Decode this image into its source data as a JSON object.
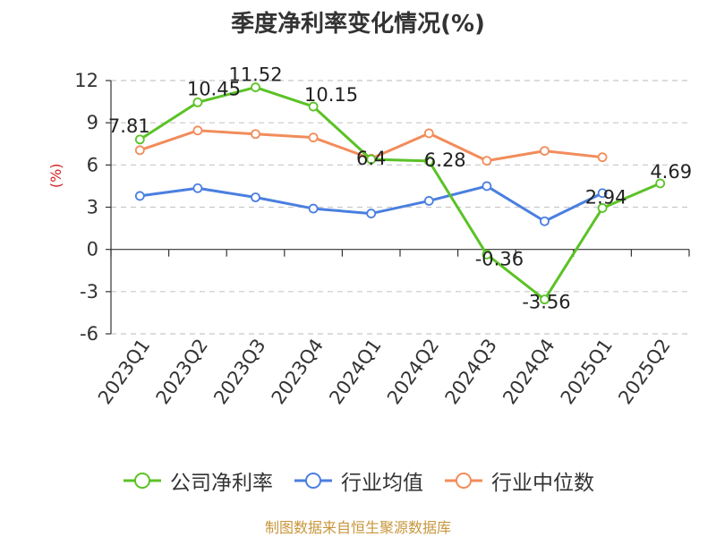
{
  "title": "季度净利率变化情况(%)",
  "source": "制图数据来自恒生聚源数据库",
  "chart_data": {
    "type": "line",
    "title": "季度净利率变化情况(%)",
    "ylabel": "(%)",
    "xlabel": "",
    "ylim": [
      -6,
      12
    ],
    "yticks": [
      12,
      9,
      6,
      3,
      0,
      -3,
      -6
    ],
    "grid": true,
    "legend_position": "bottom",
    "categories": [
      "2023Q1",
      "2023Q2",
      "2023Q3",
      "2023Q4",
      "2024Q1",
      "2024Q2",
      "2024Q3",
      "2024Q4",
      "2025Q1",
      "2025Q2"
    ],
    "series": [
      {
        "name": "公司净利率",
        "color": "#5bc226",
        "values": [
          7.81,
          10.45,
          11.52,
          10.15,
          6.4,
          6.28,
          -0.36,
          -3.56,
          2.94,
          4.69
        ],
        "labels": [
          "7.81",
          "10.45",
          "11.52",
          "10.15",
          "6.4",
          "6.28",
          "-0.36",
          "-3.56",
          "2.94",
          "4.69"
        ]
      },
      {
        "name": "行业均值",
        "color": "#4a7fe0",
        "values": [
          3.8,
          4.35,
          3.7,
          2.9,
          2.55,
          3.45,
          4.5,
          2.0,
          4.0,
          null
        ]
      },
      {
        "name": "行业中位数",
        "color": "#f28c5a",
        "values": [
          7.05,
          8.45,
          8.2,
          7.95,
          6.45,
          8.25,
          6.3,
          7.0,
          6.55,
          null
        ]
      }
    ]
  }
}
